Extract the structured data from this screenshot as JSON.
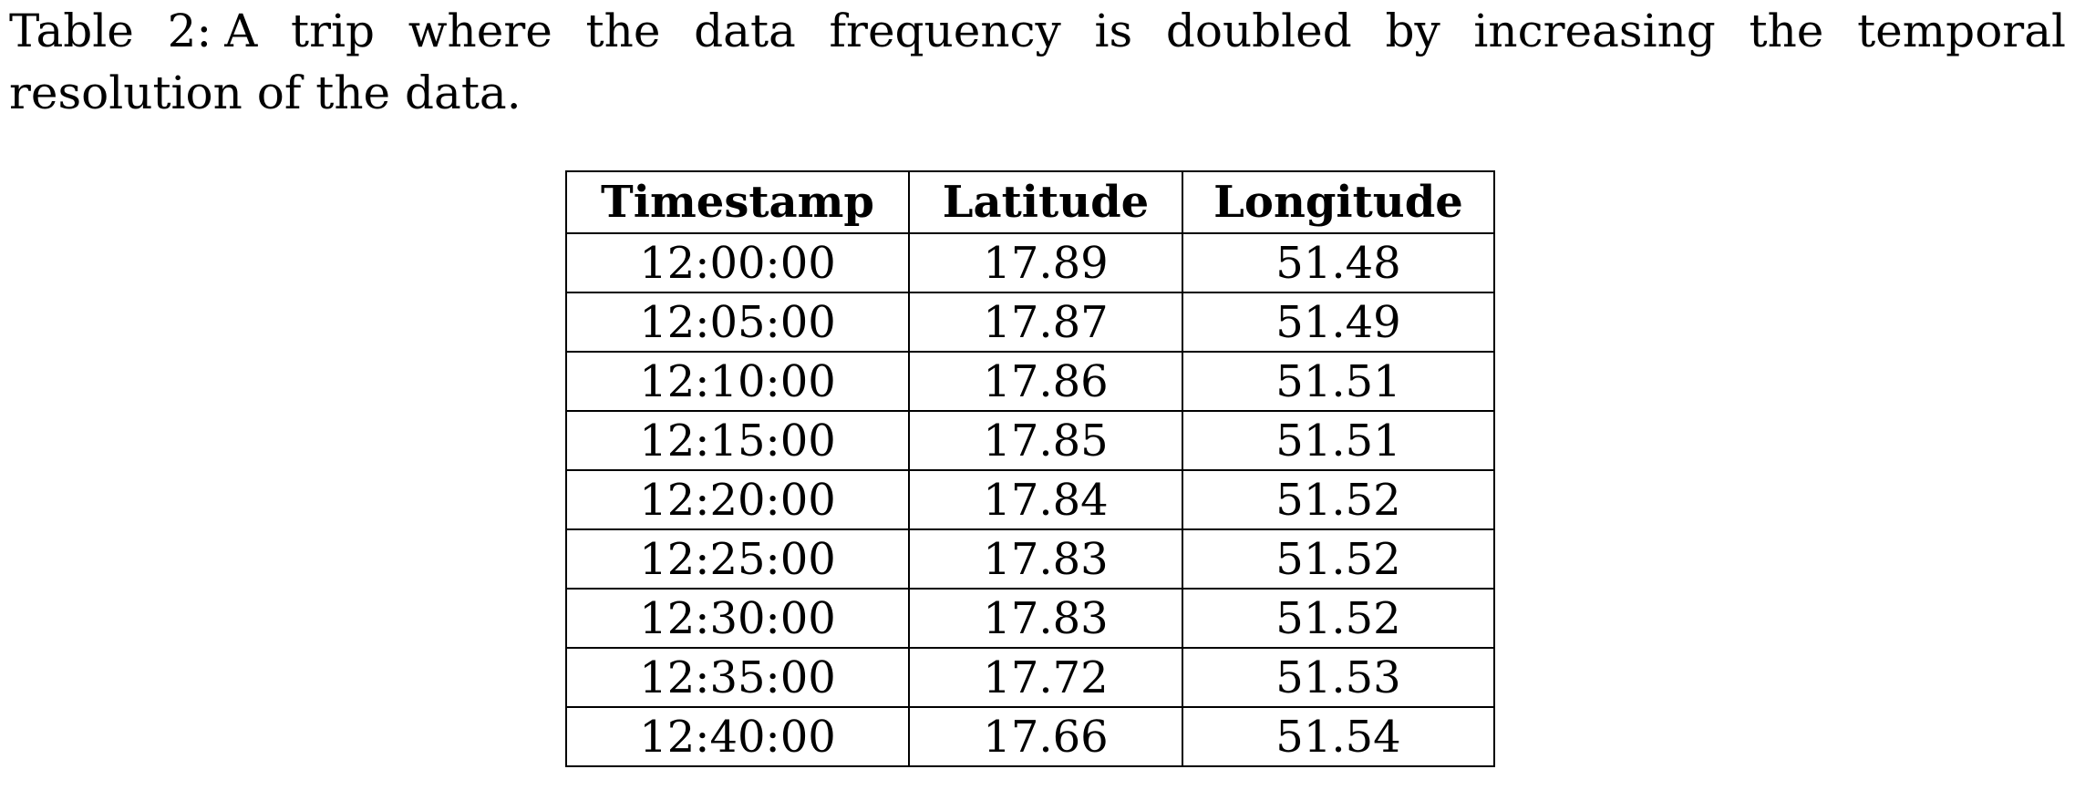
{
  "caption": {
    "label": "Table 2:",
    "text": "A trip where the data frequency is doubled by increasing the temporal resolution of the data."
  },
  "table": {
    "headers": [
      "Timestamp",
      "Latitude",
      "Longitude"
    ],
    "rows": [
      [
        "12:00:00",
        "17.89",
        "51.48"
      ],
      [
        "12:05:00",
        "17.87",
        "51.49"
      ],
      [
        "12:10:00",
        "17.86",
        "51.51"
      ],
      [
        "12:15:00",
        "17.85",
        "51.51"
      ],
      [
        "12:20:00",
        "17.84",
        "51.52"
      ],
      [
        "12:25:00",
        "17.83",
        "51.52"
      ],
      [
        "12:30:00",
        "17.83",
        "51.52"
      ],
      [
        "12:35:00",
        "17.72",
        "51.53"
      ],
      [
        "12:40:00",
        "17.66",
        "51.54"
      ]
    ]
  }
}
